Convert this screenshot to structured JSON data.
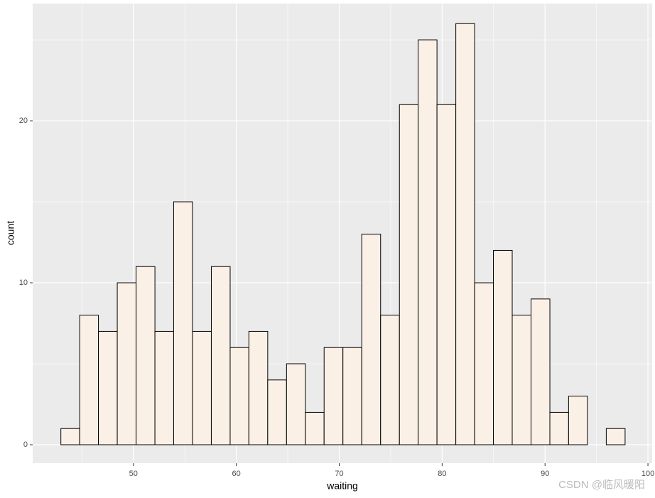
{
  "chart_data": {
    "type": "histogram",
    "x_label": "waiting",
    "y_label": "count",
    "bins": [
      42.95,
      44.78,
      46.6,
      48.43,
      50.26,
      52.09,
      53.91,
      55.74,
      57.57,
      59.4,
      61.22,
      63.05,
      64.88,
      66.71,
      68.53,
      70.36,
      72.19,
      74.02,
      75.85,
      77.67,
      79.5,
      81.33,
      83.16,
      84.98,
      86.81,
      88.64,
      90.47,
      92.29,
      94.12,
      95.95,
      97.78
    ],
    "values": [
      1,
      8,
      7,
      10,
      11,
      7,
      15,
      7,
      11,
      6,
      7,
      4,
      5,
      2,
      6,
      6,
      13,
      8,
      21,
      25,
      21,
      26,
      10,
      12,
      8,
      9,
      2,
      3,
      0,
      1
    ],
    "color": "#faf0e6",
    "edge_color": "#000000",
    "xlim": [
      40.21,
      100.41
    ],
    "xticks": [
      50,
      60,
      70,
      80,
      90,
      100
    ],
    "ylim": [
      -1.14,
      27.24
    ],
    "yticks": [
      0,
      10,
      20
    ],
    "grid": true,
    "panel_color": "#ebebeb",
    "watermark": "CSDN @临风暖阳"
  }
}
